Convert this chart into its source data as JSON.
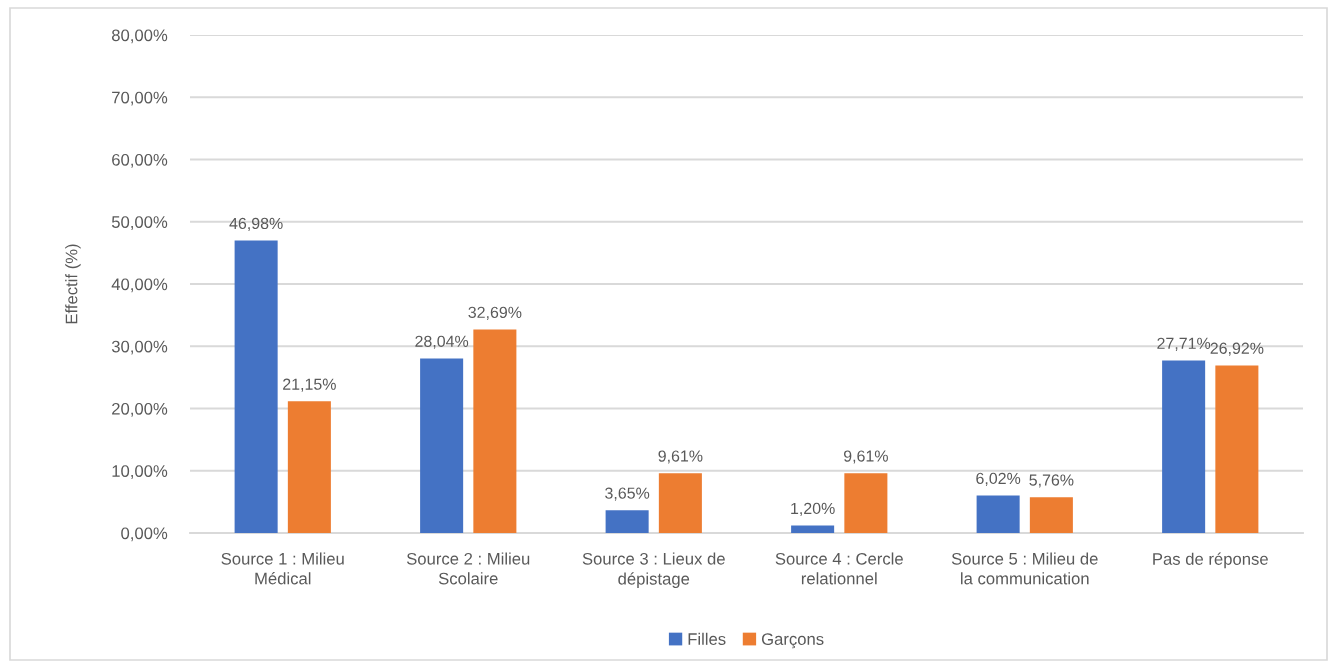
{
  "chart_data": {
    "type": "bar",
    "ylabel": "Effectif (%)",
    "categories": [
      "Source 1 : Milieu\nMédical",
      "Source 2 : Milieu\nScolaire",
      "Source 3 : Lieux de\ndépistage",
      "Source 4 : Cercle\nrelationnel",
      "Source 5 : Milieu de\nla communication",
      "Pas de réponse"
    ],
    "series": [
      {
        "name": "Filles",
        "color": "#4472c4",
        "values": [
          46.98,
          28.04,
          3.65,
          1.2,
          6.02,
          27.71
        ],
        "value_labels": [
          "46,98%",
          "28,04%",
          "3,65%",
          "1,20%",
          "6,02%",
          "27,71%"
        ]
      },
      {
        "name": "Garçons",
        "color": "#ed7d31",
        "values": [
          21.15,
          32.69,
          9.61,
          9.61,
          5.76,
          26.92
        ],
        "value_labels": [
          "21,15%",
          "32,69%",
          "9,61%",
          "9,61%",
          "5,76%",
          "26,92%"
        ]
      }
    ],
    "ylim": [
      0,
      80
    ],
    "yticks": [
      {
        "value": 0,
        "label": "0,00%"
      },
      {
        "value": 10,
        "label": "10,00%"
      },
      {
        "value": 20,
        "label": "20,00%"
      },
      {
        "value": 30,
        "label": "30,00%"
      },
      {
        "value": 40,
        "label": "40,00%"
      },
      {
        "value": 50,
        "label": "50,00%"
      },
      {
        "value": 60,
        "label": "60,00%"
      },
      {
        "value": 70,
        "label": "70,00%"
      },
      {
        "value": 80,
        "label": "80,00%"
      }
    ],
    "grid": "y",
    "legend": "bottom"
  }
}
